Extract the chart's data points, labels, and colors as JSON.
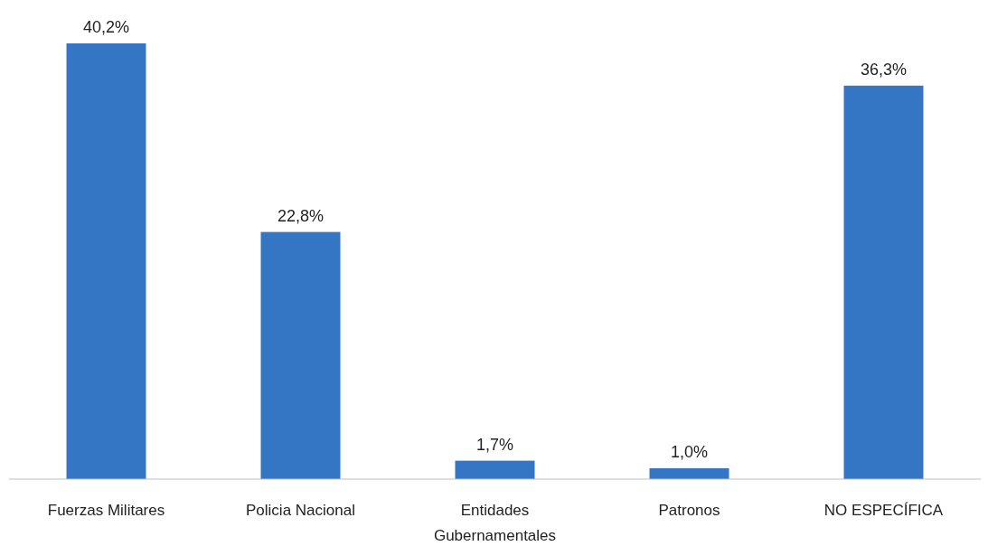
{
  "chart_data": {
    "type": "bar",
    "categories": [
      "Fuerzas Militares",
      "Policia Nacional",
      "Entidades Gubernamentales",
      "Patronos",
      "NO ESPECÍFICA"
    ],
    "values": [
      40.2,
      22.8,
      1.7,
      1.0,
      36.3
    ],
    "value_labels": [
      "40,2%",
      "22,8%",
      "1,7%",
      "1,0%",
      "36,3%"
    ],
    "color": "#3576c4"
  }
}
